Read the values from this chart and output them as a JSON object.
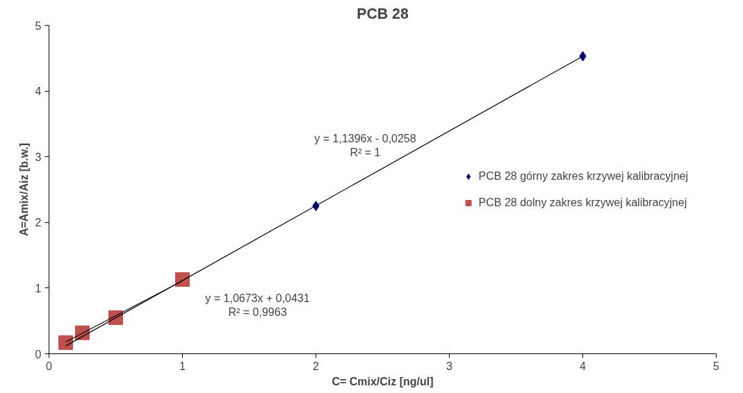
{
  "chart_data": {
    "type": "scatter",
    "title": "PCB 28",
    "xlabel": "C= Cmix/Ciz [ng/ul]",
    "ylabel": "A=Amix/Aiz [b.w.]",
    "xlim": [
      0,
      5
    ],
    "ylim": [
      0,
      5
    ],
    "xticks": [
      0,
      1,
      2,
      3,
      4,
      5
    ],
    "yticks": [
      0,
      1,
      2,
      3,
      4,
      5
    ],
    "grid": false,
    "legend": "right",
    "series": [
      {
        "name": "PCB 28 górny zakres krzywej kalibracyjnej",
        "marker": "diamond",
        "color": "#000080",
        "x": [
          2,
          4
        ],
        "values": [
          2.25,
          4.53
        ]
      },
      {
        "name": "PCB 28 dolny zakres krzywej kalibracyjnej",
        "marker": "square",
        "color": "#c0504d",
        "x": [
          0.125,
          0.25,
          0.5,
          1
        ],
        "values": [
          0.17,
          0.32,
          0.55,
          1.13
        ]
      },
      {
        "type": "line",
        "marker": "none",
        "color": "#000000",
        "x": [
          0.125,
          4
        ],
        "values": [
          0.12,
          4.53
        ]
      },
      {
        "type": "line",
        "marker": "none",
        "color": "#000000",
        "x": [
          0.125,
          1
        ],
        "values": [
          0.18,
          1.11
        ]
      }
    ],
    "annotations": [
      "y = 1,1396x - 0,0258\nR² = 1",
      "y = 1,0673x + 0,0431\nR² = 0,9963"
    ]
  }
}
